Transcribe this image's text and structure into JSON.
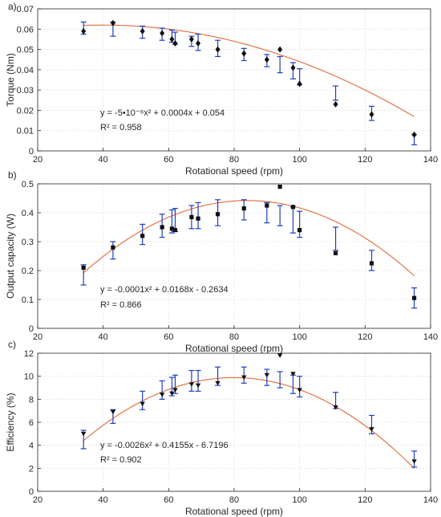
{
  "chart_data": [
    {
      "type": "scatter",
      "panel_label": "a)",
      "xlabel": "Rotational speed (rpm)",
      "ylabel": "Torque (Nm)",
      "xlim": [
        20,
        140
      ],
      "ylim": [
        0,
        0.07
      ],
      "xticks": [
        20,
        40,
        60,
        80,
        100,
        120,
        140
      ],
      "yticks": [
        0,
        0.01,
        0.02,
        0.03,
        0.04,
        0.05,
        0.06,
        0.07
      ],
      "ytick_labels": [
        "0",
        "0.01",
        "0.02",
        "0.03",
        "0.04",
        "0.05",
        "0.06",
        "0.07"
      ],
      "grid": true,
      "marker": "diamond",
      "equation_line1": "y = -5•10⁻⁶x² + 0.0004x + 0.054",
      "equation_line2": "R² = 0.958",
      "fit_coeffs": [
        -5e-06,
        0.0004,
        0.054
      ],
      "x": [
        34,
        43,
        52,
        58,
        61,
        62,
        67,
        69,
        75,
        83,
        90,
        94,
        98,
        100,
        111,
        122,
        135
      ],
      "y": [
        0.059,
        0.063,
        0.059,
        0.058,
        0.055,
        0.053,
        0.055,
        0.053,
        0.05,
        0.048,
        0.045,
        0.05,
        0.041,
        0.033,
        0.023,
        0.018,
        0.008
      ],
      "err_center": [
        0.0605,
        0.06,
        0.0585,
        0.0575,
        0.0565,
        0.0555,
        0.054,
        0.0535,
        0.0505,
        0.0475,
        0.0445,
        0.0425,
        0.0395,
        0.0365,
        0.0285,
        0.0185,
        0.0055
      ],
      "err_half": [
        0.003,
        0.0035,
        0.003,
        0.003,
        0.003,
        0.003,
        0.0025,
        0.004,
        0.004,
        0.003,
        0.003,
        0.004,
        0.004,
        0.004,
        0.0035,
        0.0035,
        0.0025
      ]
    },
    {
      "type": "scatter",
      "panel_label": "b)",
      "xlabel": "Rotational speed (rpm)",
      "ylabel": "Output capacity (W)",
      "xlim": [
        20,
        140
      ],
      "ylim": [
        0,
        0.5
      ],
      "xticks": [
        20,
        40,
        60,
        80,
        100,
        120,
        140
      ],
      "yticks": [
        0,
        0.1,
        0.2,
        0.3,
        0.4,
        0.5
      ],
      "ytick_labels": [
        "0",
        "0.1",
        "0.2",
        "0.3",
        "0.4",
        "0.5"
      ],
      "grid": true,
      "marker": "square",
      "equation_line1": "y = -0.0001x² + 0.0168x - 0.2634",
      "equation_line2": "R² = 0.866",
      "fit_coeffs": [
        -0.0001,
        0.0168,
        -0.2634
      ],
      "x": [
        34,
        43,
        52,
        58,
        61,
        62,
        67,
        69,
        75,
        83,
        90,
        94,
        98,
        100,
        111,
        122,
        135
      ],
      "y": [
        0.21,
        0.28,
        0.32,
        0.35,
        0.345,
        0.34,
        0.385,
        0.38,
        0.395,
        0.415,
        0.425,
        0.49,
        0.42,
        0.34,
        0.26,
        0.225,
        0.105
      ],
      "err_center": [
        0.185,
        0.27,
        0.325,
        0.355,
        0.37,
        0.375,
        0.385,
        0.39,
        0.4,
        0.41,
        0.4,
        0.39,
        0.375,
        0.36,
        0.31,
        0.235,
        0.105
      ],
      "err_half": [
        0.035,
        0.03,
        0.035,
        0.04,
        0.04,
        0.04,
        0.04,
        0.045,
        0.045,
        0.035,
        0.035,
        0.035,
        0.045,
        0.045,
        0.04,
        0.035,
        0.035
      ]
    },
    {
      "type": "scatter",
      "panel_label": "c)",
      "xlabel": "Rotational speed (rpm)",
      "ylabel": "Efficiency (%)",
      "xlim": [
        20,
        140
      ],
      "ylim": [
        0,
        12
      ],
      "xticks": [
        20,
        40,
        60,
        80,
        100,
        120,
        140
      ],
      "yticks": [
        0,
        2,
        4,
        6,
        8,
        10,
        12
      ],
      "ytick_labels": [
        "0",
        "2",
        "4",
        "6",
        "8",
        "10",
        "12"
      ],
      "grid": true,
      "marker": "triangle-down",
      "equation_line1": "y = -0.0026x² + 0.4155x - 6.7196",
      "equation_line2": "R² = 0.902",
      "fit_coeffs": [
        -0.0026,
        0.4155,
        -6.7196
      ],
      "x": [
        34,
        43,
        52,
        58,
        61,
        62,
        67,
        69,
        75,
        83,
        90,
        94,
        98,
        100,
        111,
        122,
        135
      ],
      "y": [
        5.0,
        6.9,
        7.6,
        8.4,
        8.5,
        8.8,
        9.3,
        9.2,
        9.4,
        9.9,
        10.1,
        11.8,
        10.2,
        8.8,
        7.3,
        5.4,
        2.6
      ],
      "err_center": [
        4.5,
        6.5,
        7.9,
        8.8,
        9.1,
        9.3,
        9.6,
        9.6,
        10.0,
        10.1,
        9.9,
        9.7,
        9.3,
        9.1,
        7.9,
        5.8,
        2.8
      ],
      "err_half": [
        0.8,
        0.6,
        0.8,
        0.8,
        0.8,
        0.8,
        0.9,
        0.9,
        0.8,
        0.7,
        0.7,
        0.7,
        0.8,
        0.9,
        0.7,
        0.8,
        0.7
      ]
    }
  ]
}
